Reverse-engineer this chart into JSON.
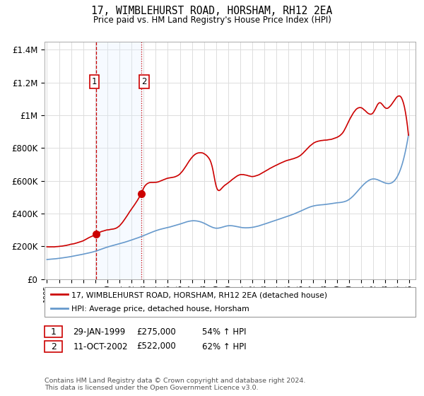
{
  "title": "17, WIMBLEHURST ROAD, HORSHAM, RH12 2EA",
  "subtitle": "Price paid vs. HM Land Registry's House Price Index (HPI)",
  "legend_line1": "17, WIMBLEHURST ROAD, HORSHAM, RH12 2EA (detached house)",
  "legend_line2": "HPI: Average price, detached house, Horsham",
  "transaction1_date": "29-JAN-1999",
  "transaction1_price": "£275,000",
  "transaction1_hpi": "54% ↑ HPI",
  "transaction2_date": "11-OCT-2002",
  "transaction2_price": "£522,000",
  "transaction2_hpi": "62% ↑ HPI",
  "footnote": "Contains HM Land Registry data © Crown copyright and database right 2024.\nThis data is licensed under the Open Government Licence v3.0.",
  "red_color": "#cc0000",
  "blue_color": "#6699cc",
  "shading_color": "#ddeeff",
  "transaction1_x": 1999.08,
  "transaction1_y": 275000,
  "transaction2_x": 2002.79,
  "transaction2_y": 522000,
  "ylim": [
    0,
    1450000
  ],
  "xlim_start": 1994.8,
  "xlim_end": 2025.5
}
